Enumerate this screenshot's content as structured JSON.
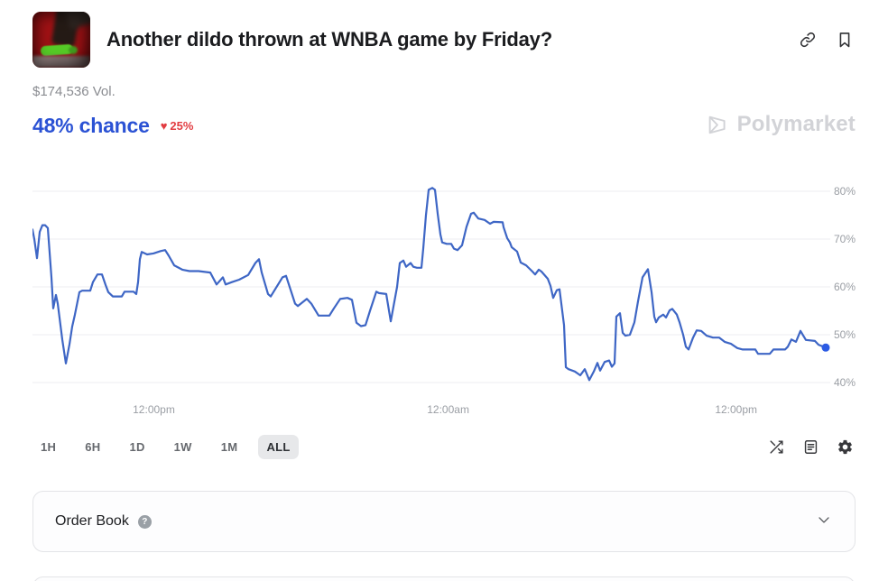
{
  "header": {
    "title": "Another dildo thrown at WNBA game by Friday?",
    "icons": [
      "link-icon",
      "bookmark-icon"
    ]
  },
  "stats": {
    "volume": "$174,536 Vol.",
    "chance": "48% chance",
    "change_direction": "down",
    "change_icon": "♥",
    "change_pct": "25%"
  },
  "watermark": {
    "label": "Polymarket",
    "icon": "polymarket-logo",
    "color": "#d2d3d7"
  },
  "chart_data": {
    "type": "line",
    "title": "Probability over time (ALL range)",
    "ylim": [
      40,
      80
    ],
    "grid": true,
    "line_color": "#3e66c5",
    "end_dot_color": "#2c5be4",
    "yticks": [
      {
        "label": "80%",
        "value": 80
      },
      {
        "label": "70%",
        "value": 70
      },
      {
        "label": "60%",
        "value": 60
      },
      {
        "label": "50%",
        "value": 50
      },
      {
        "label": "40%",
        "value": 40
      }
    ],
    "xticks": [
      {
        "label": "12:00pm",
        "pos": 0.153
      },
      {
        "label": "12:00am",
        "pos": 0.524
      },
      {
        "label": "12:00pm",
        "pos": 0.887
      }
    ],
    "points": [
      [
        0,
        72
      ],
      [
        2,
        70
      ],
      [
        5,
        66
      ],
      [
        8,
        71.5
      ],
      [
        11,
        72.9
      ],
      [
        14,
        72.9
      ],
      [
        17,
        72.3
      ],
      [
        21,
        62
      ],
      [
        23,
        55.5
      ],
      [
        26,
        58.3
      ],
      [
        28,
        56.5
      ],
      [
        33,
        49
      ],
      [
        37,
        44
      ],
      [
        41,
        48
      ],
      [
        44,
        51.7
      ],
      [
        47,
        54.2
      ],
      [
        52,
        58.9
      ],
      [
        55,
        59.2
      ],
      [
        64,
        59.2
      ],
      [
        67,
        61
      ],
      [
        72,
        62.6
      ],
      [
        77,
        62.6
      ],
      [
        81,
        60.4
      ],
      [
        84,
        58.9
      ],
      [
        89,
        58
      ],
      [
        99,
        58
      ],
      [
        102,
        59
      ],
      [
        112,
        59
      ],
      [
        115,
        58.5
      ],
      [
        117,
        61
      ],
      [
        119,
        65.8
      ],
      [
        121,
        67.3
      ],
      [
        127,
        66.8
      ],
      [
        134,
        67
      ],
      [
        142,
        67.5
      ],
      [
        147,
        67.7
      ],
      [
        151,
        66.5
      ],
      [
        157,
        64.5
      ],
      [
        166,
        63.6
      ],
      [
        174,
        63.3
      ],
      [
        184,
        63.3
      ],
      [
        197,
        63
      ],
      [
        204,
        60.5
      ],
      [
        211,
        62
      ],
      [
        214,
        60.5
      ],
      [
        221,
        61
      ],
      [
        229,
        61.5
      ],
      [
        239,
        62.5
      ],
      [
        247,
        65
      ],
      [
        251,
        65.8
      ],
      [
        254,
        63
      ],
      [
        261,
        58.5
      ],
      [
        264,
        58
      ],
      [
        277,
        62
      ],
      [
        281,
        62.3
      ],
      [
        291,
        56.5
      ],
      [
        294,
        56
      ],
      [
        304,
        57.5
      ],
      [
        309,
        56.5
      ],
      [
        317,
        54
      ],
      [
        329,
        54
      ],
      [
        334,
        55.5
      ],
      [
        341,
        57.5
      ],
      [
        349,
        57.7
      ],
      [
        354,
        57.3
      ],
      [
        359,
        52.5
      ],
      [
        364,
        51.8
      ],
      [
        369,
        52
      ],
      [
        374,
        55
      ],
      [
        381,
        59
      ],
      [
        384,
        58.7
      ],
      [
        392,
        58.5
      ],
      [
        397,
        52.8
      ],
      [
        404,
        60
      ],
      [
        407,
        65
      ],
      [
        411,
        65.5
      ],
      [
        414,
        64.2
      ],
      [
        419,
        65
      ],
      [
        422,
        64.2
      ],
      [
        426,
        64
      ],
      [
        431,
        64
      ],
      [
        433,
        68
      ],
      [
        436,
        75
      ],
      [
        439,
        80.3
      ],
      [
        443,
        80.7
      ],
      [
        446,
        80.3
      ],
      [
        449,
        75.3
      ],
      [
        452,
        71
      ],
      [
        454,
        69.3
      ],
      [
        459,
        69
      ],
      [
        464,
        69
      ],
      [
        467,
        68
      ],
      [
        471,
        67.7
      ],
      [
        476,
        68.7
      ],
      [
        481,
        72.6
      ],
      [
        486,
        75.3
      ],
      [
        489,
        75.5
      ],
      [
        494,
        74.3
      ],
      [
        501,
        74
      ],
      [
        507,
        73.2
      ],
      [
        511,
        73.6
      ],
      [
        521,
        73.5
      ],
      [
        522,
        72.5
      ],
      [
        526,
        70.2
      ],
      [
        529,
        69.3
      ],
      [
        531,
        68.3
      ],
      [
        537,
        67.4
      ],
      [
        541,
        65.1
      ],
      [
        547,
        64.5
      ],
      [
        554,
        63.2
      ],
      [
        557,
        62.6
      ],
      [
        561,
        63.6
      ],
      [
        564,
        63.2
      ],
      [
        571,
        61.7
      ],
      [
        574,
        60.2
      ],
      [
        577,
        57.7
      ],
      [
        581,
        59.3
      ],
      [
        584,
        59.5
      ],
      [
        589,
        52
      ],
      [
        591,
        43.2
      ],
      [
        594,
        42.8
      ],
      [
        601,
        42.3
      ],
      [
        604,
        41.9
      ],
      [
        607,
        41.5
      ],
      [
        612,
        42.8
      ],
      [
        617,
        40.5
      ],
      [
        622,
        42.3
      ],
      [
        626,
        44.1
      ],
      [
        629,
        42.5
      ],
      [
        634,
        44.3
      ],
      [
        639,
        44.6
      ],
      [
        642,
        43.3
      ],
      [
        645,
        44
      ],
      [
        647,
        53.8
      ],
      [
        651,
        54.5
      ],
      [
        654,
        50.4
      ],
      [
        657,
        49.8
      ],
      [
        662,
        50
      ],
      [
        667,
        52.6
      ],
      [
        671,
        57
      ],
      [
        676,
        62
      ],
      [
        682,
        63.7
      ],
      [
        686,
        58.9
      ],
      [
        689,
        53.8
      ],
      [
        691,
        52.6
      ],
      [
        694,
        53.6
      ],
      [
        699,
        54.2
      ],
      [
        702,
        53.6
      ],
      [
        706,
        55.1
      ],
      [
        709,
        55.4
      ],
      [
        714,
        54.2
      ],
      [
        717,
        52.6
      ],
      [
        721,
        50
      ],
      [
        724,
        47.5
      ],
      [
        727,
        46.9
      ],
      [
        732,
        49.4
      ],
      [
        736,
        50.9
      ],
      [
        741,
        50.8
      ],
      [
        747,
        49.8
      ],
      [
        754,
        49.4
      ],
      [
        761,
        49.4
      ],
      [
        767,
        48.5
      ],
      [
        774,
        48.1
      ],
      [
        781,
        47.2
      ],
      [
        787,
        46.9
      ],
      [
        801,
        46.9
      ],
      [
        804,
        46
      ],
      [
        817,
        46
      ],
      [
        821,
        46.9
      ],
      [
        834,
        46.9
      ],
      [
        837,
        47.5
      ],
      [
        841,
        49
      ],
      [
        846,
        48.5
      ],
      [
        851,
        50.8
      ],
      [
        857,
        48.9
      ],
      [
        867,
        48.7
      ],
      [
        871,
        47.9
      ],
      [
        879,
        47.3
      ]
    ]
  },
  "controls": {
    "ranges": [
      {
        "label": "1H",
        "selected": false
      },
      {
        "label": "6H",
        "selected": false
      },
      {
        "label": "1D",
        "selected": false
      },
      {
        "label": "1W",
        "selected": false
      },
      {
        "label": "1M",
        "selected": false
      },
      {
        "label": "ALL",
        "selected": true
      }
    ],
    "icons": [
      "compare-shuffle-icon",
      "news-article-icon",
      "settings-gear-icon"
    ]
  },
  "order_book": {
    "title": "Order Book",
    "help_label": "?",
    "state": "collapsed"
  }
}
